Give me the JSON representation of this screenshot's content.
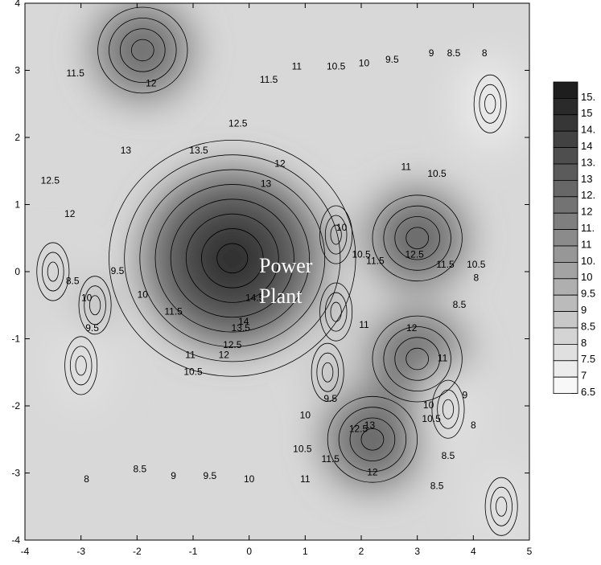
{
  "chart_data": {
    "type": "heatmap",
    "subtype": "filled-contour",
    "title": "",
    "xlabel": "",
    "ylabel": "",
    "xlim": [
      -4,
      5
    ],
    "ylim": [
      -4,
      4
    ],
    "x_ticks": [
      "-4",
      "-3",
      "-2",
      "-1",
      "0",
      "1",
      "2",
      "3",
      "4",
      "5"
    ],
    "y_ticks": [
      "4",
      "3",
      "2",
      "1",
      "0",
      "-1",
      "-2",
      "-3",
      "-4"
    ],
    "grid": false,
    "colormap": "grayscale (light = low, dark = high)",
    "contour_levels": [
      6.5,
      7,
      7.5,
      8,
      8.5,
      9,
      9.5,
      10,
      10.5,
      11,
      11.5,
      12,
      12.5,
      13,
      13.5,
      14,
      14.5,
      15,
      15.5
    ],
    "legend": {
      "position": "right",
      "labels": [
        "15.",
        "15",
        "14.",
        "14",
        "13.",
        "13",
        "12.",
        "12",
        "11.",
        "11",
        "10.",
        "10",
        "9.5",
        "9",
        "8.5",
        "8",
        "7.5",
        "7",
        "6.5"
      ]
    },
    "annotations": [
      {
        "text": "Power",
        "x": 0.8,
        "y": 0.2
      },
      {
        "text": "Plant",
        "x": 0.8,
        "y": -0.45
      }
    ],
    "peaks": [
      {
        "x": -0.3,
        "y": 0.2,
        "value": 15.5
      },
      {
        "x": 3.0,
        "y": 0.5,
        "value": 13.0
      },
      {
        "x": 2.2,
        "y": -2.5,
        "value": 13.0
      },
      {
        "x": -1.9,
        "y": 3.3,
        "value": 12.5
      },
      {
        "x": 3.0,
        "y": -1.3,
        "value": 12.5
      }
    ],
    "troughs": [
      {
        "x": 1.55,
        "y": 0.55,
        "value": 9.0
      },
      {
        "x": 1.55,
        "y": -0.6,
        "value": 9.0
      },
      {
        "x": 1.4,
        "y": -1.5,
        "value": 9.0
      },
      {
        "x": -3.5,
        "y": 0.0,
        "value": 8.0
      },
      {
        "x": -2.75,
        "y": -0.5,
        "value": 9.5
      },
      {
        "x": -3.0,
        "y": -1.4,
        "value": 7.5
      },
      {
        "x": 3.55,
        "y": -2.05,
        "value": 7.5
      },
      {
        "x": 4.3,
        "y": 2.5,
        "value": 7.0
      },
      {
        "x": 4.5,
        "y": -3.5,
        "value": 7.5
      }
    ],
    "contour_labels": [
      {
        "text": "11.5",
        "x": -3.1,
        "y": 2.95
      },
      {
        "text": "12",
        "x": -1.75,
        "y": 2.8
      },
      {
        "text": "11.5",
        "x": 0.35,
        "y": 2.85
      },
      {
        "text": "11",
        "x": 0.85,
        "y": 3.05
      },
      {
        "text": "10.5",
        "x": 1.55,
        "y": 3.05
      },
      {
        "text": "10",
        "x": 2.05,
        "y": 3.1
      },
      {
        "text": "9.5",
        "x": 2.55,
        "y": 3.15
      },
      {
        "text": "9",
        "x": 3.25,
        "y": 3.25
      },
      {
        "text": "8.5",
        "x": 3.65,
        "y": 3.25
      },
      {
        "text": "8",
        "x": 4.2,
        "y": 3.25
      },
      {
        "text": "12.5",
        "x": -0.2,
        "y": 2.2
      },
      {
        "text": "13",
        "x": -2.2,
        "y": 1.8
      },
      {
        "text": "13.5",
        "x": -0.9,
        "y": 1.8
      },
      {
        "text": "12",
        "x": 0.55,
        "y": 1.6
      },
      {
        "text": "13",
        "x": 0.3,
        "y": 1.3
      },
      {
        "text": "12.5",
        "x": -3.55,
        "y": 1.35
      },
      {
        "text": "12",
        "x": -3.2,
        "y": 0.85
      },
      {
        "text": "11",
        "x": 2.8,
        "y": 1.55
      },
      {
        "text": "10.5",
        "x": 3.35,
        "y": 1.45
      },
      {
        "text": "10",
        "x": 1.65,
        "y": 0.65
      },
      {
        "text": "10.5",
        "x": 2.0,
        "y": 0.25
      },
      {
        "text": "11.5",
        "x": 2.25,
        "y": 0.15
      },
      {
        "text": "12.5",
        "x": 2.95,
        "y": 0.25
      },
      {
        "text": "11.5",
        "x": 3.5,
        "y": 0.1
      },
      {
        "text": "9.5",
        "x": -2.35,
        "y": 0.0
      },
      {
        "text": "8.5",
        "x": -3.15,
        "y": -0.15
      },
      {
        "text": "10",
        "x": -2.9,
        "y": -0.4
      },
      {
        "text": "9.5",
        "x": -2.8,
        "y": -0.85
      },
      {
        "text": "10",
        "x": -1.9,
        "y": -0.35
      },
      {
        "text": "11.5",
        "x": -1.35,
        "y": -0.6
      },
      {
        "text": "11",
        "x": -1.05,
        "y": -1.25
      },
      {
        "text": "10.5",
        "x": -1.0,
        "y": -1.5
      },
      {
        "text": "14.5",
        "x": 0.1,
        "y": -0.4
      },
      {
        "text": "14",
        "x": -0.1,
        "y": -0.75
      },
      {
        "text": "13.5",
        "x": -0.15,
        "y": -0.85
      },
      {
        "text": "12.5",
        "x": -0.3,
        "y": -1.1
      },
      {
        "text": "12",
        "x": -0.45,
        "y": -1.25
      },
      {
        "text": "11",
        "x": 2.05,
        "y": -0.8
      },
      {
        "text": "12",
        "x": 2.9,
        "y": -0.85
      },
      {
        "text": "11",
        "x": 3.45,
        "y": -1.3
      },
      {
        "text": "9.5",
        "x": 1.45,
        "y": -1.9
      },
      {
        "text": "10",
        "x": 1.0,
        "y": -2.15
      },
      {
        "text": "9",
        "x": 3.85,
        "y": -1.85
      },
      {
        "text": "8",
        "x": 4.0,
        "y": -2.3
      },
      {
        "text": "10.5",
        "x": 0.95,
        "y": -2.65
      },
      {
        "text": "11.5",
        "x": 1.45,
        "y": -2.8
      },
      {
        "text": "12.5",
        "x": 1.95,
        "y": -2.35
      },
      {
        "text": "13",
        "x": 2.15,
        "y": -2.3
      },
      {
        "text": "12",
        "x": 2.2,
        "y": -3.0
      },
      {
        "text": "11",
        "x": 1.0,
        "y": -3.1
      },
      {
        "text": "8.5",
        "x": 3.55,
        "y": -2.75
      },
      {
        "text": "8.5",
        "x": 3.35,
        "y": -3.2
      },
      {
        "text": "8",
        "x": -2.9,
        "y": -3.1
      },
      {
        "text": "8.5",
        "x": -1.95,
        "y": -2.95
      },
      {
        "text": "9",
        "x": -1.35,
        "y": -3.05
      },
      {
        "text": "9.5",
        "x": -0.7,
        "y": -3.05
      },
      {
        "text": "10",
        "x": 0.0,
        "y": -3.1
      },
      {
        "text": "10.5",
        "x": 4.05,
        "y": 0.1
      },
      {
        "text": "8",
        "x": 4.05,
        "y": -0.1
      },
      {
        "text": "8.5",
        "x": 3.75,
        "y": -0.5
      },
      {
        "text": "10",
        "x": 3.2,
        "y": -2.0
      },
      {
        "text": "10.5",
        "x": 3.25,
        "y": -2.2
      }
    ]
  }
}
